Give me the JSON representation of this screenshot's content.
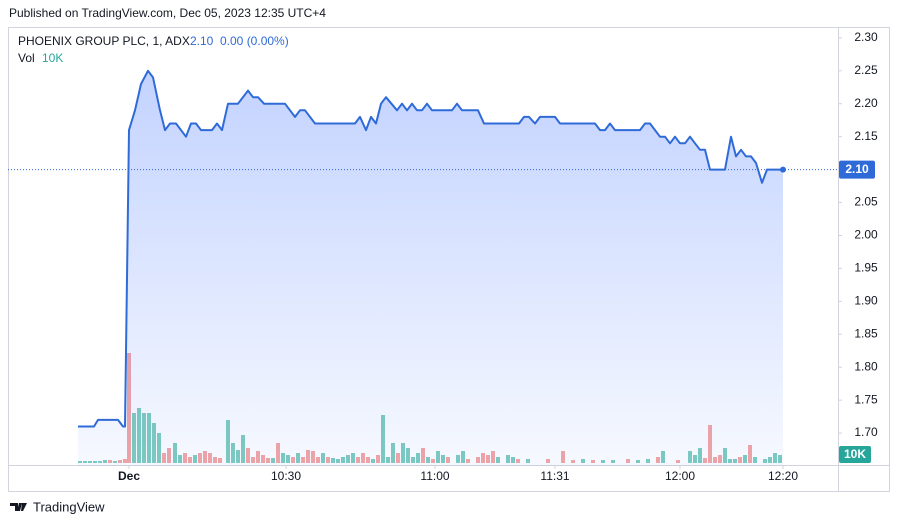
{
  "header": {
    "published": "Published on TradingView.com, Dec 05, 2023 12:35 UTC+4"
  },
  "footer": {
    "brand": "TradingView"
  },
  "chart_data": {
    "type": "area",
    "symbol": "PHOENIX GROUP  PLC, 1, ADX",
    "last_price": {
      "value": 2.1,
      "label": "2.10"
    },
    "change": "0.00 (0.00%)",
    "color": "#2f6bd8",
    "grid": false,
    "xlim": [
      -14,
      152
    ],
    "ylim": [
      1.65,
      2.315
    ],
    "xticks": [
      {
        "value": 10.2,
        "label": "Dec"
      },
      {
        "value": 41.6,
        "label": "10:30"
      },
      {
        "value": 71.4,
        "label": "11:00"
      },
      {
        "value": 95.4,
        "label": "11:31"
      },
      {
        "value": 120.4,
        "label": "12:00"
      },
      {
        "value": 141,
        "label": "12:20"
      }
    ],
    "yticks": [
      {
        "value": 1.7,
        "label": "1.70"
      },
      {
        "value": 1.75,
        "label": "1.75"
      },
      {
        "value": 1.8,
        "label": "1.80"
      },
      {
        "value": 1.85,
        "label": "1.85"
      },
      {
        "value": 1.9,
        "label": "1.90"
      },
      {
        "value": 1.95,
        "label": "1.95"
      },
      {
        "value": 2.0,
        "label": "2.00"
      },
      {
        "value": 2.05,
        "label": "2.05"
      },
      {
        "value": 2.15,
        "label": "2.15"
      },
      {
        "value": 2.2,
        "label": "2.20"
      },
      {
        "value": 2.25,
        "label": "2.25"
      },
      {
        "value": 2.3,
        "label": "2.30"
      }
    ],
    "x": [
      0,
      3.2,
      4,
      8,
      9,
      9.4,
      10.2,
      11.4,
      12.6,
      14,
      15,
      16.4,
      17.4,
      18.4,
      19.6,
      21.6,
      22.6,
      23.6,
      24.6,
      26.8,
      27.8,
      28.8,
      30,
      32,
      34,
      35,
      36,
      37.2,
      41.4,
      42.4,
      43.4,
      44.4,
      45.4,
      47.4,
      55.4,
      56.4,
      57.6,
      58.6,
      59.6,
      60.6,
      61.6,
      63.8,
      64.8,
      65.8,
      66.8,
      67.8,
      68.8,
      69.8,
      70.8,
      74.8,
      75.8,
      76.8,
      80,
      81.2,
      88.2,
      89.2,
      90.2,
      91.4,
      92.4,
      95.4,
      96.4,
      103.4,
      104.4,
      105.4,
      106.4,
      107.4,
      112.4,
      113.4,
      114.4,
      115.4,
      116.4,
      117.4,
      118.4,
      119.4,
      120.4,
      121.4,
      122.4,
      123.4,
      124.4,
      125.4,
      126.4,
      129.4,
      130.6,
      131.6,
      132.6,
      133.6,
      134.6,
      135.6,
      136.8,
      137.8,
      141
    ],
    "values": [
      1.71,
      1.71,
      1.72,
      1.72,
      1.71,
      1.71,
      2.16,
      2.19,
      2.23,
      2.25,
      2.24,
      2.19,
      2.16,
      2.17,
      2.17,
      2.15,
      2.17,
      2.17,
      2.16,
      2.16,
      2.17,
      2.16,
      2.2,
      2.2,
      2.22,
      2.21,
      2.21,
      2.2,
      2.2,
      2.19,
      2.18,
      2.19,
      2.19,
      2.17,
      2.17,
      2.18,
      2.16,
      2.18,
      2.17,
      2.2,
      2.21,
      2.19,
      2.2,
      2.19,
      2.2,
      2.19,
      2.19,
      2.2,
      2.19,
      2.19,
      2.2,
      2.19,
      2.19,
      2.17,
      2.17,
      2.18,
      2.18,
      2.17,
      2.18,
      2.18,
      2.17,
      2.17,
      2.16,
      2.16,
      2.17,
      2.16,
      2.16,
      2.17,
      2.17,
      2.16,
      2.15,
      2.15,
      2.14,
      2.15,
      2.14,
      2.14,
      2.15,
      2.14,
      2.13,
      2.13,
      2.1,
      2.1,
      2.15,
      2.12,
      2.13,
      2.12,
      2.12,
      2.11,
      2.08,
      2.1,
      2.1
    ],
    "volume": {
      "label": "Vol",
      "last_label": "10K",
      "last_color": "#26a69a",
      "ylim": [
        0,
        130
      ],
      "colors": {
        "up": "#7fcdbf",
        "down": "#f4a6a4"
      },
      "x": [
        0.4,
        1.4,
        2.4,
        3.4,
        4.4,
        5.4,
        6.4,
        7.4,
        8.4,
        9.4,
        10.2,
        11.2,
        12.2,
        13.2,
        14.2,
        15.2,
        16.2,
        17.2,
        18.2,
        19.4,
        20.4,
        21.4,
        22.4,
        23.4,
        24.4,
        25.4,
        26.4,
        27.4,
        28.4,
        30,
        31,
        32,
        33,
        34,
        35,
        36,
        37,
        38,
        39,
        40,
        41,
        42,
        43,
        44,
        45,
        46,
        47,
        48,
        49,
        50,
        51,
        52,
        53,
        54,
        55,
        56,
        57,
        58,
        59,
        60,
        61,
        62,
        63,
        64,
        65,
        66,
        67,
        68,
        69,
        70,
        71,
        72,
        73,
        74,
        76,
        77,
        78,
        80,
        81,
        82,
        83,
        84,
        86,
        87,
        88,
        90,
        94,
        97,
        99,
        101,
        103,
        105,
        107,
        110,
        112,
        114,
        116,
        117,
        120,
        122.4,
        123.4,
        124.4,
        125.4,
        126.4,
        127.4,
        128.4,
        129.4,
        130.4,
        131.4,
        132.4,
        133.4,
        134.4,
        135.4,
        137.4,
        138.4,
        139.4,
        140.4
      ],
      "values": [
        2,
        2,
        2,
        2,
        2,
        3,
        3,
        2,
        3,
        4,
        110,
        50,
        55,
        50,
        50,
        40,
        30,
        10,
        15,
        20,
        8,
        10,
        6,
        8,
        10,
        12,
        10,
        6,
        5,
        43,
        20,
        13,
        28,
        15,
        6,
        12,
        8,
        5,
        5,
        20,
        10,
        8,
        6,
        10,
        6,
        13,
        12,
        6,
        10,
        6,
        5,
        4,
        6,
        8,
        10,
        6,
        10,
        6,
        4,
        8,
        48,
        6,
        20,
        10,
        20,
        15,
        6,
        10,
        15,
        6,
        4,
        12,
        8,
        6,
        8,
        12,
        4,
        6,
        10,
        8,
        12,
        6,
        8,
        6,
        4,
        4,
        4,
        12,
        3,
        4,
        3,
        3,
        3,
        4,
        3,
        4,
        6,
        12,
        3,
        12,
        8,
        15,
        5,
        38,
        6,
        8,
        15,
        4,
        4,
        6,
        8,
        18,
        6,
        4,
        6,
        10,
        8
      ],
      "directions": [
        "up",
        "up",
        "up",
        "up",
        "up",
        "up",
        "down",
        "up",
        "down",
        "down",
        "down",
        "up",
        "up",
        "up",
        "up",
        "up",
        "up",
        "down",
        "down",
        "up",
        "up",
        "down",
        "down",
        "up",
        "down",
        "down",
        "down",
        "down",
        "down",
        "up",
        "up",
        "up",
        "up",
        "down",
        "down",
        "down",
        "down",
        "down",
        "up",
        "down",
        "up",
        "up",
        "down",
        "up",
        "down",
        "down",
        "down",
        "down",
        "up",
        "down",
        "up",
        "up",
        "up",
        "up",
        "up",
        "down",
        "down",
        "down",
        "up",
        "down",
        "up",
        "up",
        "up",
        "down",
        "up",
        "up",
        "up",
        "up",
        "down",
        "up",
        "down",
        "up",
        "up",
        "down",
        "up",
        "up",
        "down",
        "down",
        "down",
        "down",
        "down",
        "up",
        "up",
        "up",
        "down",
        "up",
        "down",
        "down",
        "down",
        "up",
        "down",
        "up",
        "up",
        "down",
        "up",
        "up",
        "down",
        "up",
        "down",
        "up",
        "up",
        "up",
        "down",
        "down",
        "down",
        "down",
        "up",
        "up",
        "up",
        "down",
        "up",
        "down",
        "up",
        "up",
        "up",
        "up",
        "up"
      ]
    }
  }
}
